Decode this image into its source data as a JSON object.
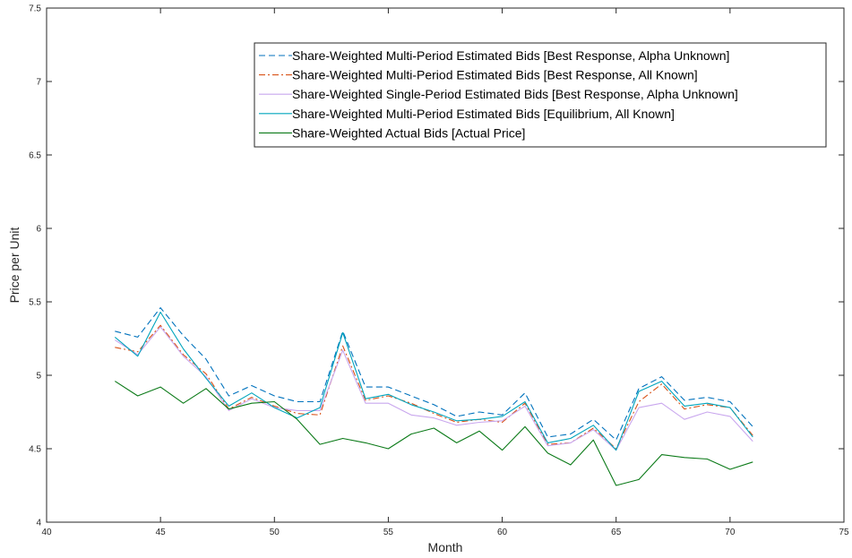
{
  "chart_data": {
    "type": "line",
    "title": "",
    "xlabel": "Month",
    "ylabel": "Price per Unit",
    "xlim": [
      40,
      75
    ],
    "ylim": [
      4,
      7.5
    ],
    "xticks": [
      "40",
      "45",
      "50",
      "55",
      "60",
      "65",
      "70",
      "75"
    ],
    "yticks": [
      "4",
      "4.5",
      "5",
      "5.5",
      "6",
      "6.5",
      "7",
      "7.5"
    ],
    "grid": false,
    "legend_position": "top-right",
    "x": [
      43,
      44,
      45,
      46,
      47,
      48,
      49,
      50,
      51,
      52,
      53,
      54,
      55,
      56,
      57,
      58,
      59,
      60,
      61,
      62,
      63,
      64,
      65,
      66,
      67,
      68,
      69,
      70,
      71
    ],
    "series": [
      {
        "name": "Share-Weighted Multi-Period Estimated Bids [Best Response, Alpha Unknown]",
        "color": "#0072BD",
        "dash": "dashed",
        "values": [
          5.3,
          5.26,
          5.46,
          5.27,
          5.11,
          4.86,
          4.93,
          4.86,
          4.82,
          4.82,
          5.3,
          4.92,
          4.92,
          4.86,
          4.8,
          4.72,
          4.75,
          4.73,
          4.88,
          4.58,
          4.6,
          4.7,
          4.56,
          4.91,
          4.99,
          4.83,
          4.85,
          4.82,
          4.65
        ]
      },
      {
        "name": "Share-Weighted Multi-Period Estimated Bids [Best Response, All Known]",
        "color": "#D95319",
        "dash": "dashdot",
        "values": [
          5.19,
          5.16,
          5.34,
          5.14,
          5.01,
          4.77,
          4.85,
          4.79,
          4.74,
          4.73,
          5.2,
          4.83,
          4.86,
          4.81,
          4.74,
          4.68,
          4.7,
          4.68,
          4.81,
          4.53,
          4.54,
          4.64,
          4.5,
          4.82,
          4.94,
          4.77,
          4.8,
          4.78,
          4.59
        ]
      },
      {
        "name": "Share-Weighted Single-Period Estimated Bids [Best Response, Alpha Unknown]",
        "color": "#C9A7EE",
        "dash": "solid",
        "values": [
          5.24,
          5.14,
          5.33,
          5.13,
          4.99,
          4.76,
          4.84,
          4.78,
          4.76,
          4.76,
          5.17,
          4.81,
          4.81,
          4.73,
          4.71,
          4.66,
          4.68,
          4.69,
          4.79,
          4.52,
          4.54,
          4.63,
          4.49,
          4.78,
          4.81,
          4.7,
          4.75,
          4.72,
          4.55
        ]
      },
      {
        "name": "Share-Weighted Multi-Period Estimated Bids [Equilibrium, All Known]",
        "color": "#00A5BD",
        "dash": "solid",
        "values": [
          5.26,
          5.13,
          5.43,
          5.18,
          4.98,
          4.79,
          4.88,
          4.78,
          4.71,
          4.78,
          5.29,
          4.84,
          4.87,
          4.8,
          4.75,
          4.69,
          4.7,
          4.72,
          4.82,
          4.54,
          4.57,
          4.66,
          4.49,
          4.89,
          4.96,
          4.79,
          4.81,
          4.78,
          4.58
        ]
      },
      {
        "name": "Share-Weighted Actual Bids [Actual Price]",
        "color": "#0B7A18",
        "dash": "solid",
        "values": [
          4.96,
          4.86,
          4.92,
          4.81,
          4.91,
          4.77,
          4.81,
          4.82,
          4.7,
          4.53,
          4.57,
          4.54,
          4.5,
          4.6,
          4.64,
          4.54,
          4.62,
          4.49,
          4.65,
          4.47,
          4.39,
          4.56,
          4.25,
          4.29,
          4.46,
          4.44,
          4.43,
          4.36,
          4.41
        ]
      }
    ]
  }
}
